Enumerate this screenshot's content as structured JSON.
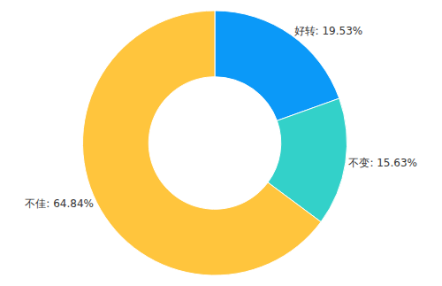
{
  "chart_data": {
    "type": "pie",
    "categories": [
      "好转",
      "不变",
      "不佳"
    ],
    "values": [
      19.53,
      15.63,
      64.84
    ],
    "value_labels": [
      "好转: 19.53%",
      "不变: 15.63%",
      "不佳: 64.84%"
    ],
    "colors": [
      "#0b99f8",
      "#33d1c9",
      "#ffc53d"
    ],
    "data_labels": true
  }
}
